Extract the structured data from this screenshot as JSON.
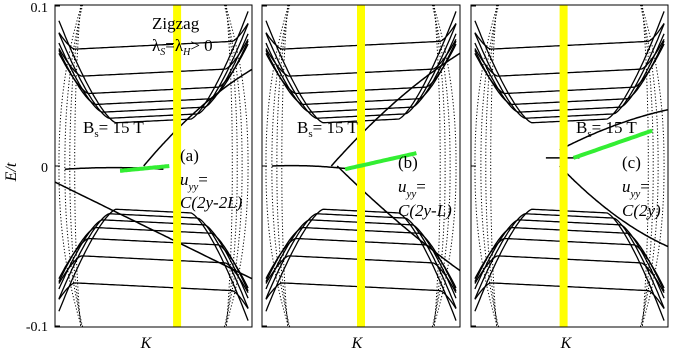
{
  "chart_data": {
    "type": "line",
    "ylabel": "E/t",
    "xlabel": "",
    "ylim": [
      -0.1,
      0.1
    ],
    "yticks": [
      "0.1",
      "0",
      "-0.1"
    ],
    "panels": [
      {
        "panel_label": "(a)",
        "x_tick_label": "K",
        "field_label": "B",
        "field_sub": "s",
        "field_value": "= 15 T",
        "strain_var": "u",
        "strain_sub": "yy",
        "strain_eq": "=",
        "strain_formula": "C(2y-2L)",
        "header_line1": "Zigzag",
        "header_line2": "λS=λH> 0",
        "highlight_x": 0.62,
        "edge_state_E": [
          -0.003,
          0.0
        ]
      },
      {
        "panel_label": "(b)",
        "x_tick_label": "K",
        "field_label": "B",
        "field_sub": "s",
        "field_value": "= 15 T",
        "strain_var": "u",
        "strain_sub": "yy",
        "strain_eq": "=",
        "strain_formula": "C(2y-L)",
        "highlight_x": 0.5,
        "edge_state_E": [
          -0.002,
          0.008
        ]
      },
      {
        "panel_label": "(c)",
        "x_tick_label": "K",
        "field_label": "B",
        "field_sub": "s",
        "field_value": "= 15 T",
        "strain_var": "u",
        "strain_sub": "yy",
        "strain_eq": "=",
        "strain_formula": "C(2y)",
        "highlight_x": 0.47,
        "edge_state_E": [
          0.005,
          0.022
        ]
      }
    ],
    "colors": {
      "highlight": "#ffff00",
      "edge_state": "#33ee33",
      "bands": "#000000"
    }
  }
}
